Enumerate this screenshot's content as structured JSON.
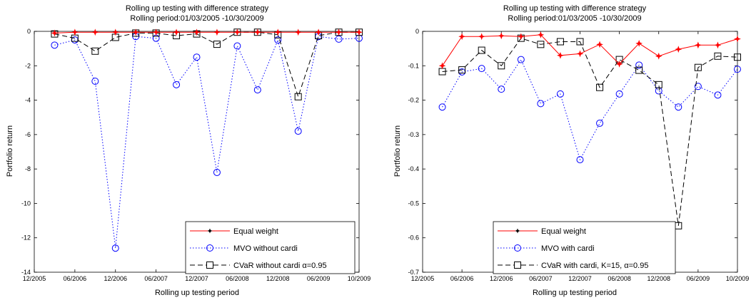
{
  "chart_data": [
    {
      "type": "line",
      "title": "Rolling up testing with difference strategy",
      "subtitle": "Rolling period:01/03/2005 -10/30/2009",
      "xlabel": "Rolling up testing period",
      "ylabel": "Portfolio return",
      "xtick_labels": [
        "12/2005",
        "06/2006",
        "12/2006",
        "06/2007",
        "12/2007",
        "06/2008",
        "12/2008",
        "06/2009",
        "10/2009"
      ],
      "xlim": [
        0,
        8
      ],
      "ylim": [
        -14,
        0
      ],
      "yticks": [
        0,
        -2,
        -4,
        -6,
        -8,
        -10,
        -12,
        -14
      ],
      "ytick_labels": [
        "0",
        "-2",
        "-4",
        "-6",
        "-8",
        "-10",
        "-12",
        "-14"
      ],
      "legend_position": "bottom-right",
      "grid": false,
      "x": [
        0.5,
        1,
        1.5,
        2,
        2.5,
        3,
        3.5,
        4,
        4.5,
        5,
        5.5,
        6,
        6.5,
        7,
        7.5,
        8
      ],
      "series": [
        {
          "name": "Equal weight",
          "color": "#ff0000",
          "style": "solid",
          "marker": "star",
          "values": [
            -0.1,
            -0.05,
            -0.05,
            -0.05,
            -0.05,
            -0.05,
            -0.05,
            -0.05,
            -0.05,
            -0.05,
            -0.05,
            -0.05,
            -0.05,
            -0.05,
            -0.05,
            -0.05
          ]
        },
        {
          "name": "MVO without cardi",
          "color": "#0000ff",
          "style": "dotted",
          "marker": "circle",
          "values": [
            -0.8,
            -0.5,
            -2.9,
            -12.6,
            -0.3,
            -0.4,
            -3.1,
            -1.5,
            -8.2,
            -0.85,
            -3.4,
            -0.5,
            -5.8,
            -0.3,
            -0.45,
            -0.4
          ]
        },
        {
          "name": "CVaR without cardi α=0.95",
          "color": "#000000",
          "style": "dashed",
          "marker": "square",
          "values": [
            -0.15,
            -0.4,
            -1.15,
            -0.35,
            -0.1,
            -0.1,
            -0.25,
            -0.15,
            -0.75,
            -0.05,
            -0.05,
            -0.2,
            -3.8,
            -0.25,
            -0.05,
            -0.05
          ]
        }
      ]
    },
    {
      "type": "line",
      "title": "Rolling up testing with difference strategy",
      "subtitle": "Rolling period:01/03/2005 -10/30/2009",
      "xlabel": "Rolling up testing period",
      "ylabel": "Portfolio return",
      "xtick_labels": [
        "12/2005",
        "06/2006",
        "12/2006",
        "06/2007",
        "12/2007",
        "06/2008",
        "12/2008",
        "06/2009",
        "10/2009"
      ],
      "xlim": [
        0,
        8
      ],
      "ylim": [
        -0.7,
        0
      ],
      "yticks": [
        0,
        -0.1,
        -0.2,
        -0.3,
        -0.4,
        -0.5,
        -0.6,
        -0.7
      ],
      "ytick_labels": [
        "0",
        "-0.1",
        "-0.2",
        "-0.3",
        "-0.4",
        "-0.5",
        "-0.6",
        "-0.7"
      ],
      "legend_position": "bottom-right",
      "grid": false,
      "x": [
        0.5,
        1,
        1.5,
        2,
        2.5,
        3,
        3.5,
        4,
        4.5,
        5,
        5.5,
        6,
        6.5,
        7,
        7.5,
        8
      ],
      "series": [
        {
          "name": "Equal weight",
          "color": "#ff0000",
          "style": "solid",
          "marker": "star",
          "values": [
            -0.1,
            -0.015,
            -0.015,
            -0.013,
            -0.015,
            -0.01,
            -0.07,
            -0.065,
            -0.038,
            -0.095,
            -0.035,
            -0.072,
            -0.052,
            -0.04,
            -0.04,
            -0.022
          ]
        },
        {
          "name": "MVO with cardi",
          "color": "#0000ff",
          "style": "dotted",
          "marker": "circle",
          "values": [
            -0.22,
            -0.118,
            -0.108,
            -0.168,
            -0.082,
            -0.21,
            -0.182,
            -0.373,
            -0.267,
            -0.182,
            -0.098,
            -0.173,
            -0.22,
            -0.16,
            -0.185,
            -0.11
          ]
        },
        {
          "name": "CVaR with cardi, K=15, α=0.95",
          "color": "#000000",
          "style": "dashed",
          "marker": "square",
          "values": [
            -0.117,
            -0.112,
            -0.055,
            -0.1,
            -0.02,
            -0.038,
            -0.03,
            -0.03,
            -0.163,
            -0.082,
            -0.113,
            -0.155,
            -0.565,
            -0.105,
            -0.072,
            -0.075
          ]
        }
      ]
    }
  ]
}
